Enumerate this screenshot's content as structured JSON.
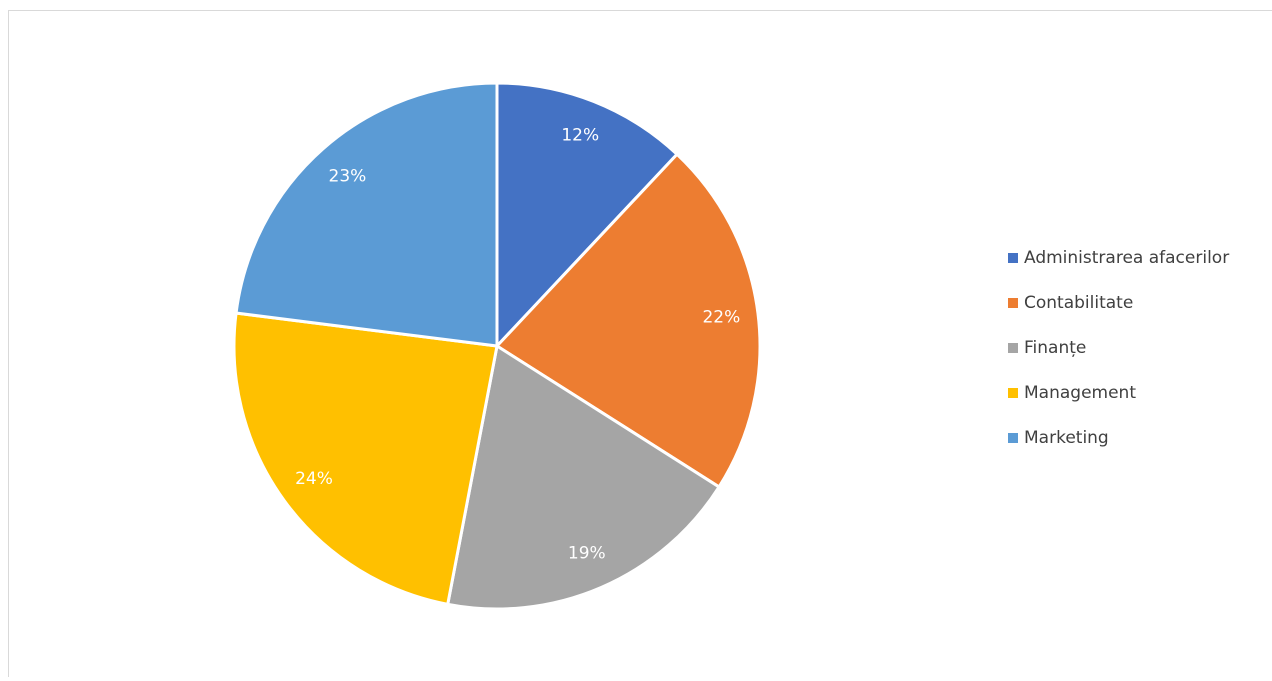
{
  "chart_data": {
    "type": "pie",
    "categories": [
      "Administrarea afacerilor",
      "Contabilitate",
      "Finanțe",
      "Management",
      "Marketing"
    ],
    "values": [
      12,
      22,
      19,
      24,
      23
    ],
    "value_labels": [
      "12%",
      "22%",
      "19%",
      "24%",
      "23%"
    ],
    "colors": [
      "#4472c4",
      "#ed7d31",
      "#a5a5a5",
      "#ffc000",
      "#5b9bd5"
    ],
    "legend": "right"
  }
}
